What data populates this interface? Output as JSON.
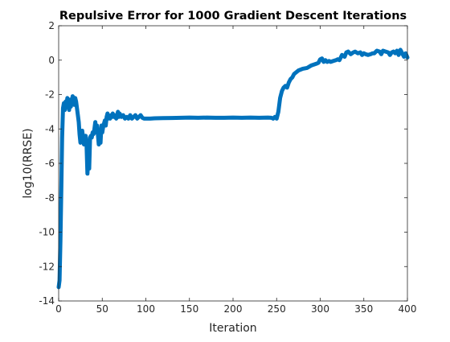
{
  "chart_data": {
    "type": "line",
    "title": "Repulsive Error for 1000 Gradient Descent Iterations",
    "xlabel": "Iteration",
    "ylabel": "log10(RRSE)",
    "xlim": [
      0,
      400
    ],
    "ylim": [
      -14,
      2
    ],
    "xticks": [
      0,
      50,
      100,
      150,
      200,
      250,
      300,
      350,
      400
    ],
    "yticks": [
      -14,
      -12,
      -10,
      -8,
      -6,
      -4,
      -2,
      0,
      2
    ],
    "grid": false,
    "legend": "none",
    "series": [
      {
        "color": "#0072BD",
        "x": [
          0,
          1,
          2,
          3,
          4,
          5,
          6,
          7,
          8,
          9,
          10,
          11,
          12,
          13,
          14,
          15,
          16,
          17,
          18,
          19,
          20,
          21,
          22,
          23,
          24,
          25,
          26,
          27,
          28,
          29,
          30,
          31,
          32,
          33,
          34,
          35,
          36,
          37,
          38,
          39,
          40,
          41,
          42,
          43,
          44,
          45,
          46,
          47,
          48,
          49,
          50,
          51,
          52,
          53,
          54,
          55,
          56,
          57,
          58,
          59,
          60,
          61,
          62,
          63,
          64,
          65,
          66,
          67,
          68,
          69,
          70,
          72,
          74,
          76,
          78,
          80,
          82,
          84,
          86,
          88,
          90,
          92,
          94,
          96,
          98,
          100,
          105,
          110,
          120,
          130,
          140,
          150,
          160,
          170,
          180,
          190,
          200,
          210,
          220,
          230,
          240,
          244,
          246,
          248,
          250,
          252,
          254,
          256,
          258,
          260,
          262,
          264,
          266,
          268,
          270,
          275,
          280,
          285,
          290,
          293,
          296,
          298,
          300,
          302,
          304,
          306,
          308,
          310,
          312,
          315,
          318,
          320,
          322,
          325,
          328,
          330,
          332,
          335,
          338,
          340,
          343,
          346,
          348,
          350,
          352,
          355,
          358,
          360,
          362,
          365,
          368,
          370,
          372,
          375,
          378,
          380,
          382,
          384,
          386,
          388,
          390,
          392,
          394,
          396,
          398,
          400
        ],
        "y": [
          -13.2,
          -12.8,
          -10.5,
          -7.5,
          -4.5,
          -2.8,
          -2.5,
          -2.9,
          -2.4,
          -2.6,
          -2.2,
          -2.5,
          -2.9,
          -2.3,
          -2.7,
          -2.4,
          -2.1,
          -2.3,
          -2.6,
          -2.2,
          -2.4,
          -2.8,
          -3.2,
          -3.6,
          -4.3,
          -4.8,
          -4.6,
          -4.1,
          -4.5,
          -4.9,
          -4.7,
          -4.4,
          -4.9,
          -6.6,
          -5.8,
          -6.3,
          -4.5,
          -4.4,
          -4.5,
          -4.2,
          -4.3,
          -4.0,
          -3.6,
          -4.2,
          -3.8,
          -4.3,
          -4.9,
          -4.5,
          -4.8,
          -3.8,
          -4.2,
          -3.9,
          -3.7,
          -3.5,
          -3.8,
          -3.3,
          -3.1,
          -3.4,
          -3.3,
          -3.4,
          -3.2,
          -3.3,
          -3.1,
          -3.3,
          -3.2,
          -3.3,
          -3.4,
          -3.2,
          -3.0,
          -3.3,
          -3.1,
          -3.3,
          -3.2,
          -3.4,
          -3.3,
          -3.4,
          -3.2,
          -3.4,
          -3.3,
          -3.2,
          -3.4,
          -3.3,
          -3.2,
          -3.35,
          -3.4,
          -3.4,
          -3.4,
          -3.38,
          -3.37,
          -3.36,
          -3.35,
          -3.34,
          -3.35,
          -3.34,
          -3.35,
          -3.35,
          -3.34,
          -3.35,
          -3.34,
          -3.35,
          -3.34,
          -3.35,
          -3.4,
          -3.3,
          -3.4,
          -3.0,
          -2.2,
          -1.8,
          -1.6,
          -1.5,
          -1.6,
          -1.3,
          -1.1,
          -1.0,
          -0.8,
          -0.6,
          -0.5,
          -0.45,
          -0.3,
          -0.25,
          -0.2,
          -0.15,
          0.05,
          0.1,
          -0.1,
          0.0,
          -0.1,
          -0.05,
          -0.1,
          -0.05,
          0.0,
          0.05,
          0.0,
          0.3,
          0.2,
          0.45,
          0.5,
          0.35,
          0.45,
          0.5,
          0.4,
          0.45,
          0.3,
          0.4,
          0.35,
          0.3,
          0.35,
          0.4,
          0.4,
          0.55,
          0.5,
          0.35,
          0.55,
          0.5,
          0.45,
          0.3,
          0.45,
          0.5,
          0.4,
          0.55,
          0.3,
          0.6,
          0.4,
          0.2,
          0.4,
          0.15
        ]
      }
    ]
  }
}
